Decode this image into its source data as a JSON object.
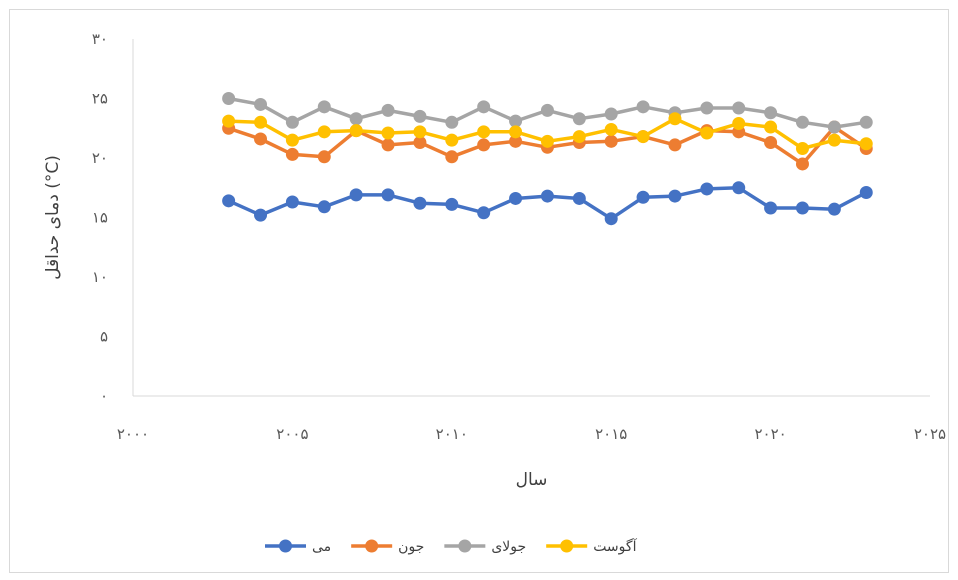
{
  "chart_data": {
    "type": "line",
    "title": "",
    "xlabel": "سال",
    "ylabel": "دمای حداقل (°C)",
    "xlim": [
      2000,
      2025
    ],
    "ylim": [
      0,
      30
    ],
    "x_ticks": [
      2000,
      2005,
      2010,
      2015,
      2020,
      2025
    ],
    "x_tick_labels": [
      "۲۰۰۰",
      "۲۰۰۵",
      "۲۰۱۰",
      "۲۰۱۵",
      "۲۰۲۰",
      "۲۰۲۵"
    ],
    "y_ticks": [
      0,
      5,
      10,
      15,
      20,
      25,
      30
    ],
    "y_tick_labels": [
      "۰",
      "۵",
      "۱۰",
      "۱۵",
      "۲۰",
      "۲۵",
      "۳۰"
    ],
    "grid": false,
    "legend_position": "bottom",
    "x": [
      2003,
      2004,
      2005,
      2006,
      2007,
      2008,
      2009,
      2010,
      2011,
      2012,
      2013,
      2014,
      2015,
      2016,
      2017,
      2018,
      2019,
      2020,
      2021,
      2022,
      2023
    ],
    "series": [
      {
        "name": "می",
        "color": "#4472C4",
        "values": [
          16.4,
          15.2,
          16.3,
          15.9,
          16.9,
          16.9,
          16.2,
          16.1,
          15.4,
          16.6,
          16.8,
          16.6,
          14.9,
          16.7,
          16.8,
          17.4,
          17.5,
          15.8,
          15.8,
          15.7,
          17.1
        ]
      },
      {
        "name": "جون",
        "color": "#ED7D31",
        "values": [
          22.5,
          21.6,
          20.3,
          20.1,
          22.3,
          21.1,
          21.3,
          20.1,
          21.1,
          21.4,
          20.9,
          21.3,
          21.4,
          21.8,
          21.1,
          22.3,
          22.2,
          21.3,
          19.5,
          22.6,
          20.8
        ]
      },
      {
        "name": "جولای",
        "color": "#A5A5A5",
        "values": [
          25.0,
          24.5,
          23.0,
          24.3,
          23.3,
          24.0,
          23.5,
          23.0,
          24.3,
          23.1,
          24.0,
          23.3,
          23.7,
          24.3,
          23.8,
          24.2,
          24.2,
          23.8,
          23.0,
          22.6,
          23.0
        ]
      },
      {
        "name": "آگوست",
        "color": "#FFC000",
        "values": [
          23.1,
          23.0,
          21.5,
          22.2,
          22.3,
          22.1,
          22.2,
          21.5,
          22.2,
          22.2,
          21.4,
          21.8,
          22.4,
          21.8,
          23.3,
          22.1,
          22.9,
          22.6,
          20.8,
          21.5,
          21.2
        ]
      }
    ]
  }
}
